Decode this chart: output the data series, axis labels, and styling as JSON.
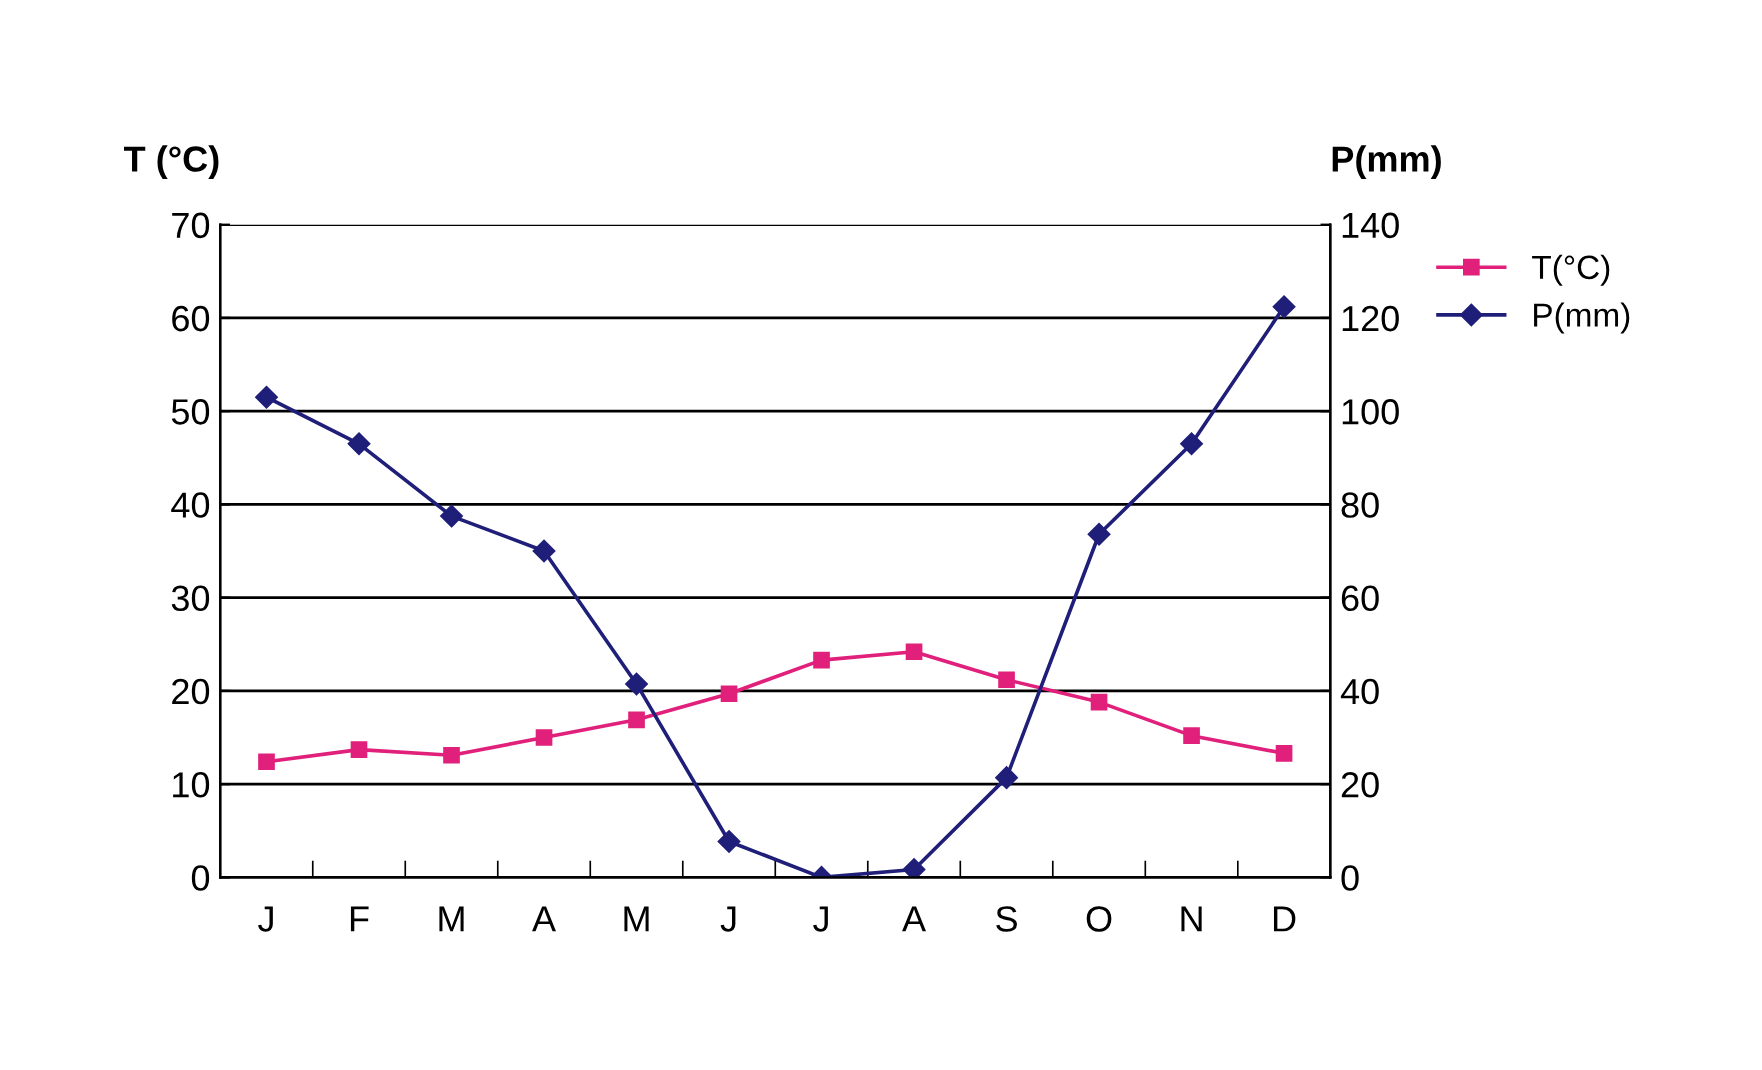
{
  "chart_data": {
    "type": "line",
    "ylabel": "T (°C)",
    "y2label": "P(mm)",
    "categories": [
      "J",
      "F",
      "M",
      "A",
      "M",
      "J",
      "J",
      "A",
      "S",
      "O",
      "N",
      "D"
    ],
    "series": [
      {
        "name": "T(°C)",
        "color": "#e0207a",
        "marker": "square",
        "values": [
          12.4,
          13.7,
          13.1,
          15,
          16.9,
          19.7,
          23.3,
          24.2,
          21.2,
          18.8,
          15.2,
          13.3
        ]
      },
      {
        "name": "P(mm)",
        "color": "#1f1f7a",
        "marker": "diamond",
        "axis": "y2",
        "values": [
          103,
          93,
          77.5,
          70,
          41.5,
          7.7,
          0,
          1.7,
          21.4,
          73.6,
          93,
          122.4
        ]
      }
    ],
    "ylim": [
      0,
      70
    ],
    "yticks": [
      0,
      10,
      20,
      30,
      40,
      50,
      60,
      70
    ],
    "y2lim": [
      0,
      140
    ],
    "y2ticks": [
      0,
      20,
      40,
      60,
      80,
      100,
      120,
      140
    ],
    "grid": "y",
    "legend": "right"
  }
}
